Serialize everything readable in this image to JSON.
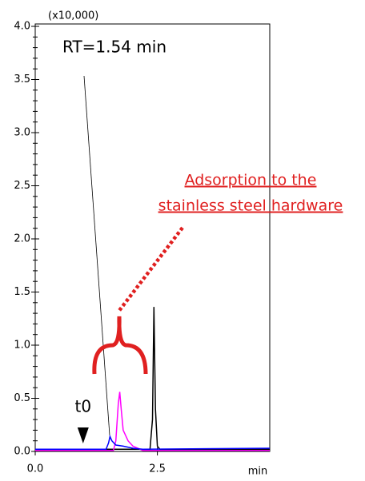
{
  "chart_data": {
    "type": "line",
    "y_unit_label": "(x10,000)",
    "x_label": "min",
    "xlim": [
      0,
      4.8
    ],
    "ylim": [
      0,
      4.0
    ],
    "xticks": [
      {
        "value": 0,
        "label": "0.0"
      },
      2.5
    ],
    "yticks": [
      {
        "value": 0,
        "label": "0.0"
      },
      0.5,
      {
        "value": 1,
        "label": "1.0"
      },
      1.5,
      {
        "value": 2,
        "label": "2.0"
      },
      2.5,
      {
        "value": 3,
        "label": "3.0"
      },
      3.5,
      {
        "value": 4,
        "label": "4.0"
      }
    ],
    "series": [
      {
        "color": "#000000",
        "x": [
          0,
          2.35,
          2.4,
          2.43,
          2.46,
          2.5,
          2.55,
          4.8
        ],
        "values": [
          0.02,
          0.02,
          0.3,
          1.36,
          0.4,
          0.05,
          0.02,
          0.02
        ]
      },
      {
        "color": "#ff00ff",
        "x": [
          0,
          1.6,
          1.65,
          1.7,
          1.73,
          1.76,
          1.8,
          1.9,
          2.0,
          2.1,
          2.2,
          4.8
        ],
        "values": [
          0.01,
          0.01,
          0.1,
          0.45,
          0.56,
          0.4,
          0.2,
          0.1,
          0.05,
          0.03,
          0.01,
          0.01
        ]
      },
      {
        "color": "#0000ff",
        "x": [
          0,
          1.45,
          1.5,
          1.53,
          1.57,
          1.65,
          1.8,
          2.0,
          2.2,
          4.8
        ],
        "values": [
          0.02,
          0.02,
          0.08,
          0.14,
          0.1,
          0.06,
          0.05,
          0.03,
          0.02,
          0.03
        ]
      }
    ],
    "rt_annotation": "RT=1.54 min",
    "adsorption_annotation": [
      "Adsorption to the",
      "stainless steel hardware"
    ],
    "t0_marker": {
      "label": "t0",
      "x": 0.98
    }
  }
}
